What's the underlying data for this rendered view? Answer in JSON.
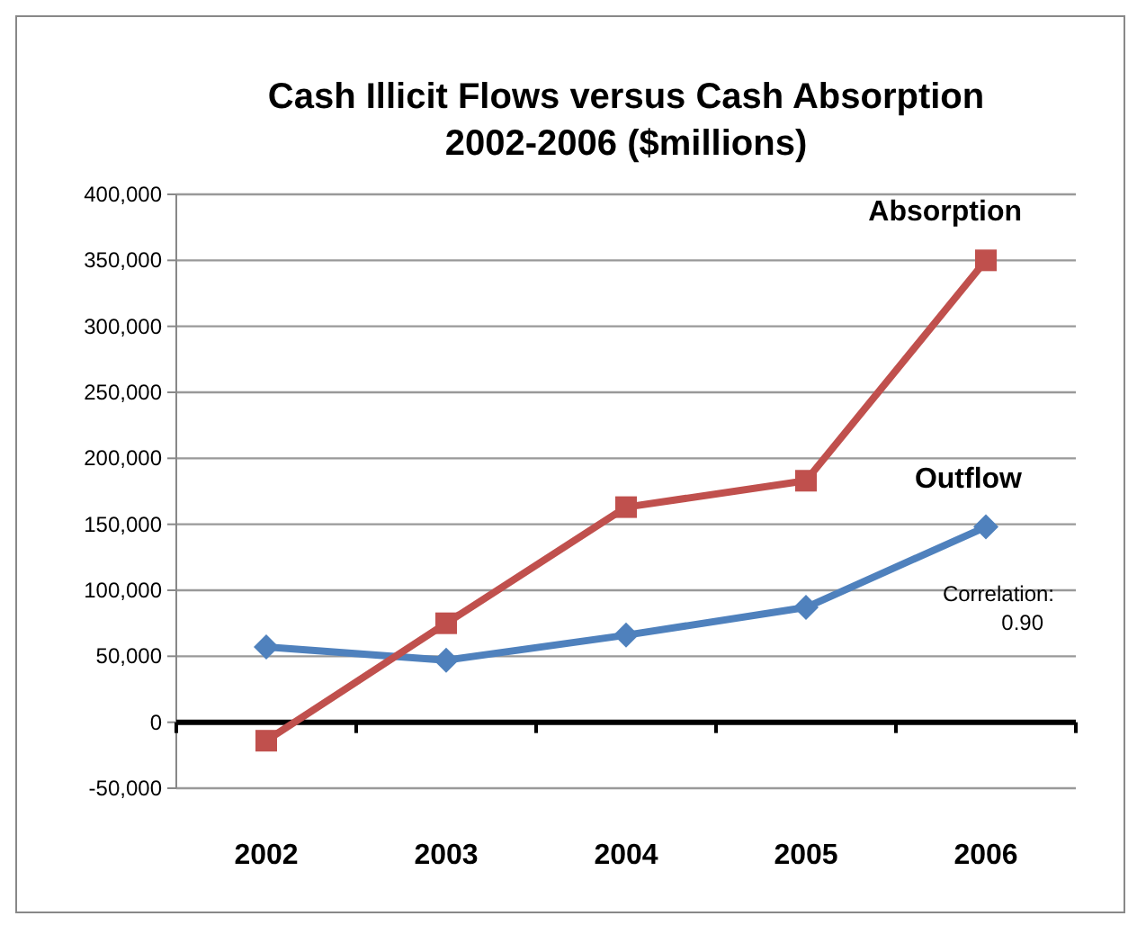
{
  "chart_data": {
    "type": "line",
    "title": "Cash Illicit Flows versus Cash Absorption\n2002-2006 ($millions)",
    "categories": [
      "2002",
      "2003",
      "2004",
      "2005",
      "2006"
    ],
    "series": [
      {
        "name": "Outflow",
        "color": "#4f81bd",
        "marker": "diamond",
        "values": [
          57000,
          47000,
          66000,
          87000,
          148000
        ]
      },
      {
        "name": "Absorption",
        "color": "#c0504d",
        "marker": "square",
        "values": [
          -14000,
          75000,
          163000,
          183000,
          350000
        ]
      }
    ],
    "ylim": [
      -50000,
      400000
    ],
    "yticks": [
      {
        "value": -50000,
        "label": "-50,000"
      },
      0,
      {
        "value": 50000,
        "label": "50,000"
      },
      {
        "value": 100000,
        "label": "100,000"
      },
      {
        "value": 150000,
        "label": "150,000"
      },
      {
        "value": 200000,
        "label": "200,000"
      },
      {
        "value": 250000,
        "label": "250,000"
      },
      {
        "value": 300000,
        "label": "300,000"
      },
      {
        "value": 350000,
        "label": "350,000"
      },
      {
        "value": 400000,
        "label": "400,000"
      }
    ],
    "grid": "y",
    "line_style": "solid",
    "annotations": [
      "Correlation: 0.90"
    ]
  }
}
